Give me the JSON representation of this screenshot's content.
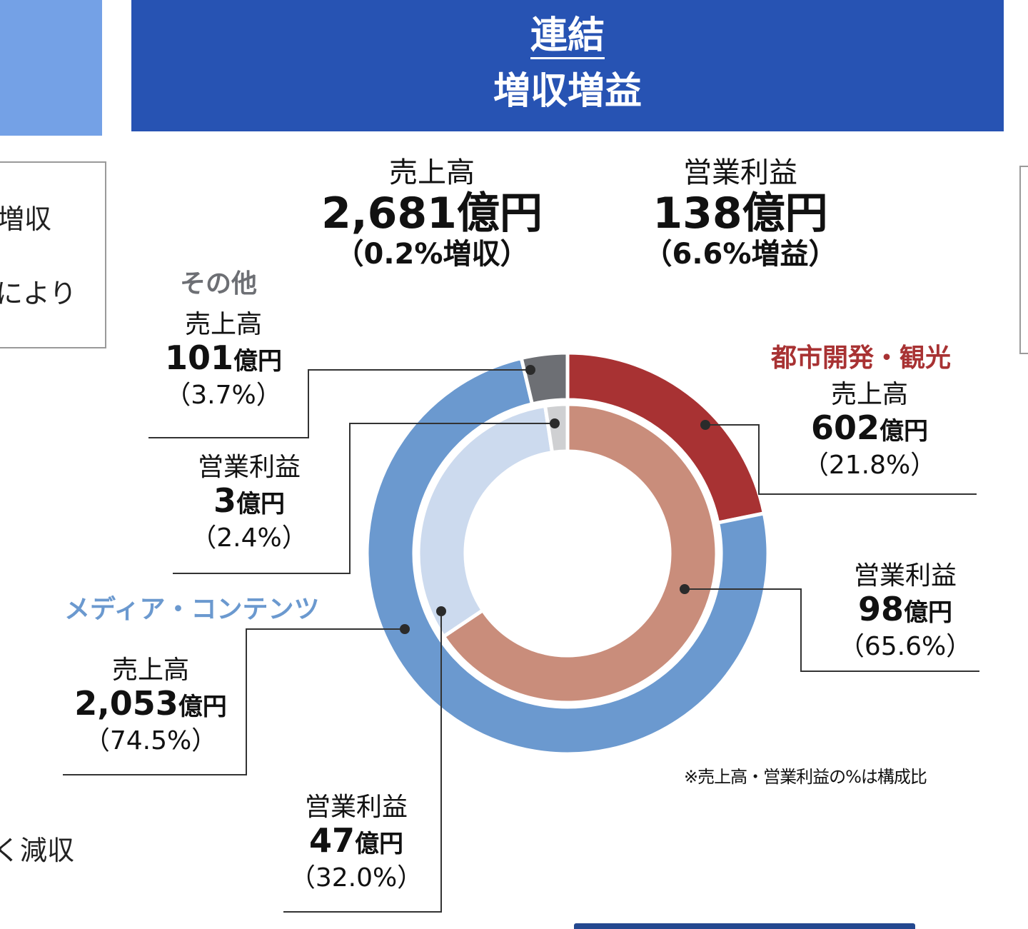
{
  "header": {
    "title": "連結",
    "subtitle": "増収増益"
  },
  "side_left": {
    "line1": "増収",
    "line2": "により",
    "line3": "く減収"
  },
  "totals": {
    "sales": {
      "label": "売上高",
      "value": "2,681億円",
      "change": "（0.2%増収）"
    },
    "operating_profit": {
      "label": "営業利益",
      "value": "138億円",
      "change": "（6.6%増益）"
    }
  },
  "segments": {
    "other": {
      "name": "その他",
      "color_name": "#6d6f74",
      "sales": {
        "label": "売上高",
        "value": "101",
        "unit": "億円",
        "pct": "（3.7%）"
      },
      "op": {
        "label": "営業利益",
        "value": "3",
        "unit": "億円",
        "pct": "（2.4%）"
      }
    },
    "city": {
      "name": "都市開発・観光",
      "color_name": "#a83233",
      "sales": {
        "label": "売上高",
        "value": "602",
        "unit": "億円",
        "pct": "（21.8%）"
      },
      "op": {
        "label": "営業利益",
        "value": "98",
        "unit": "億円",
        "pct": "（65.6%）"
      }
    },
    "media": {
      "name": "メディア・コンテンツ",
      "color_name": "#6b99cf",
      "sales": {
        "label": "売上高",
        "value": "2,053",
        "unit": "億円",
        "pct": "（74.5%）"
      },
      "op": {
        "label": "営業利益",
        "value": "47",
        "unit": "億円",
        "pct": "（32.0%）"
      }
    }
  },
  "note": "※売上高・営業利益の%は構成比",
  "chart_data": {
    "type": "pie",
    "subtype": "double-donut",
    "title": "連結 増収増益",
    "categories": [
      "都市開発・観光",
      "メディア・コンテンツ",
      "その他"
    ],
    "series": [
      {
        "name": "売上高 (outer ring)",
        "values_oku_yen": [
          602,
          2053,
          101
        ],
        "percent": [
          21.8,
          74.5,
          3.7
        ],
        "colors": [
          "#a83233",
          "#6b99cf",
          "#6d6f74"
        ],
        "total": "2,681億円",
        "change": "0.2%増収"
      },
      {
        "name": "営業利益 (inner ring)",
        "values_oku_yen": [
          98,
          47,
          3
        ],
        "percent": [
          65.6,
          32.0,
          2.4
        ],
        "colors": [
          "#c98d7b",
          "#ccdaee",
          "#cfd0d2"
        ],
        "total": "138億円",
        "change": "6.6%増益"
      }
    ],
    "start_angle_deg": 0,
    "direction": "clockwise",
    "legend": "leader-line labels",
    "annotation": "※売上高・営業利益の%は構成比"
  }
}
